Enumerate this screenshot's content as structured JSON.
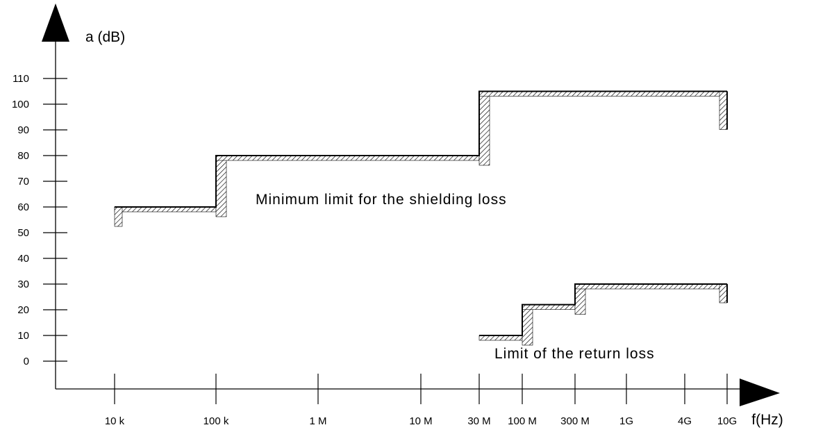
{
  "chart_data": {
    "type": "line",
    "ylabel": "a (dB)",
    "xlabel": "f(Hz)",
    "y_ticks": [
      "0",
      "10",
      "20",
      "30",
      "40",
      "50",
      "60",
      "70",
      "80",
      "90",
      "100",
      "110"
    ],
    "x_ticks": [
      "10 k",
      "100 k",
      "1 M",
      "10 M",
      "30 M",
      "100 M",
      "300 M",
      "1G",
      "4G",
      "10G"
    ],
    "xscale": "log",
    "ylim": [
      -10,
      130
    ],
    "grid": false,
    "series": [
      {
        "label": "Minimum limit for the shielding loss",
        "x": [
          "10 k",
          "100 k",
          "100 k",
          "30 M",
          "30 M",
          "10G"
        ],
        "y": [
          60,
          60,
          80,
          80,
          105,
          105
        ]
      },
      {
        "label": "Limit of the return loss",
        "x": [
          "30 M",
          "100 M",
          "100 M",
          "300 M",
          "300 M",
          "10G"
        ],
        "y": [
          10,
          10,
          22,
          22,
          30,
          30
        ]
      }
    ]
  }
}
